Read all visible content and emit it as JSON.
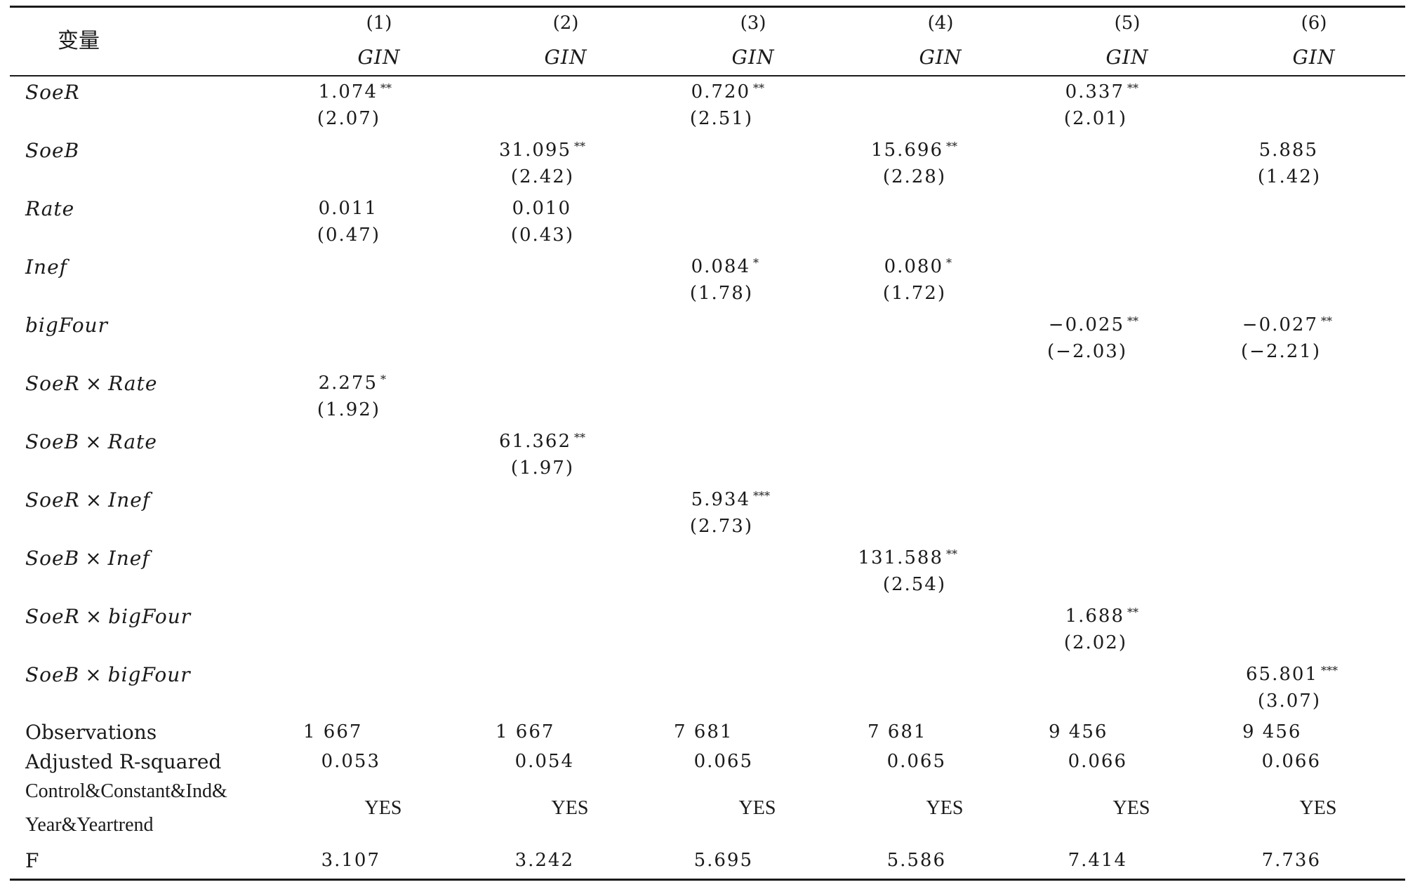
{
  "header": {
    "var_label": "变量",
    "columns": [
      {
        "num": "(1)",
        "dep": "GIN"
      },
      {
        "num": "(2)",
        "dep": "GIN"
      },
      {
        "num": "(3)",
        "dep": "GIN"
      },
      {
        "num": "(4)",
        "dep": "GIN"
      },
      {
        "num": "(5)",
        "dep": "GIN"
      },
      {
        "num": "(6)",
        "dep": "GIN"
      }
    ]
  },
  "rows": [
    {
      "name": "SoeR",
      "cells": [
        {
          "col": 0,
          "coef": "1.074",
          "stars": "**",
          "t": "(2.07)"
        },
        {
          "col": 2,
          "coef": "0.720",
          "stars": "**",
          "t": "(2.51)"
        },
        {
          "col": 4,
          "coef": "0.337",
          "stars": "**",
          "t": "(2.01)"
        }
      ]
    },
    {
      "name": "SoeB",
      "cells": [
        {
          "col": 1,
          "coef": "31.095",
          "stars": "**",
          "t": "(2.42)"
        },
        {
          "col": 3,
          "coef": "15.696",
          "stars": "**",
          "t": "(2.28)"
        },
        {
          "col": 5,
          "coef": "5.885",
          "stars": "",
          "t": "(1.42)"
        }
      ]
    },
    {
      "name": "Rate",
      "cells": [
        {
          "col": 0,
          "coef": "0.011",
          "stars": "",
          "t": "(0.47)"
        },
        {
          "col": 1,
          "coef": "0.010",
          "stars": "",
          "t": "(0.43)"
        }
      ]
    },
    {
      "name": "Inef",
      "cells": [
        {
          "col": 2,
          "coef": "0.084",
          "stars": "*",
          "t": "(1.78)"
        },
        {
          "col": 3,
          "coef": "0.080",
          "stars": "*",
          "t": "(1.72)"
        }
      ]
    },
    {
      "name": "bigFour",
      "cells": [
        {
          "col": 4,
          "coef": "−0.025",
          "stars": "**",
          "t": "(−2.03)"
        },
        {
          "col": 5,
          "coef": "−0.027",
          "stars": "**",
          "t": "(−2.21)"
        }
      ]
    },
    {
      "name": "SoeR × Rate",
      "cells": [
        {
          "col": 0,
          "coef": "2.275",
          "stars": "*",
          "t": "(1.92)"
        }
      ]
    },
    {
      "name": "SoeB × Rate",
      "cells": [
        {
          "col": 1,
          "coef": "61.362",
          "stars": "**",
          "t": "(1.97)"
        }
      ]
    },
    {
      "name": "SoeR × Inef",
      "cells": [
        {
          "col": 2,
          "coef": "5.934",
          "stars": "***",
          "t": "(2.73)"
        }
      ]
    },
    {
      "name": "SoeB × Inef",
      "cells": [
        {
          "col": 3,
          "coef": "131.588",
          "stars": "**",
          "t": "(2.54)"
        }
      ]
    },
    {
      "name": "SoeR × bigFour",
      "cells": [
        {
          "col": 4,
          "coef": "1.688",
          "stars": "**",
          "t": "(2.02)"
        }
      ]
    },
    {
      "name": "SoeB × bigFour",
      "cells": [
        {
          "col": 5,
          "coef": "65.801",
          "stars": "***",
          "t": "(3.07)"
        }
      ]
    }
  ],
  "stats": {
    "observations": {
      "label": "Observations",
      "values": [
        "1 667",
        "1 667",
        "7 681",
        "7 681",
        "9 456",
        "9 456"
      ]
    },
    "adj_r2": {
      "label": "Adjusted R-squared",
      "values": [
        "0.053",
        "0.054",
        "0.065",
        "0.065",
        "0.066",
        "0.066"
      ]
    },
    "controls": {
      "label_line1": "Control&Constant&Ind&",
      "label_line2": "Year&Yeartrend",
      "values": [
        "YES",
        "YES",
        "YES",
        "YES",
        "YES",
        "YES"
      ]
    },
    "f": {
      "label": "F",
      "values": [
        "3.107",
        "3.242",
        "5.695",
        "5.586",
        "7.414",
        "7.736"
      ]
    }
  }
}
